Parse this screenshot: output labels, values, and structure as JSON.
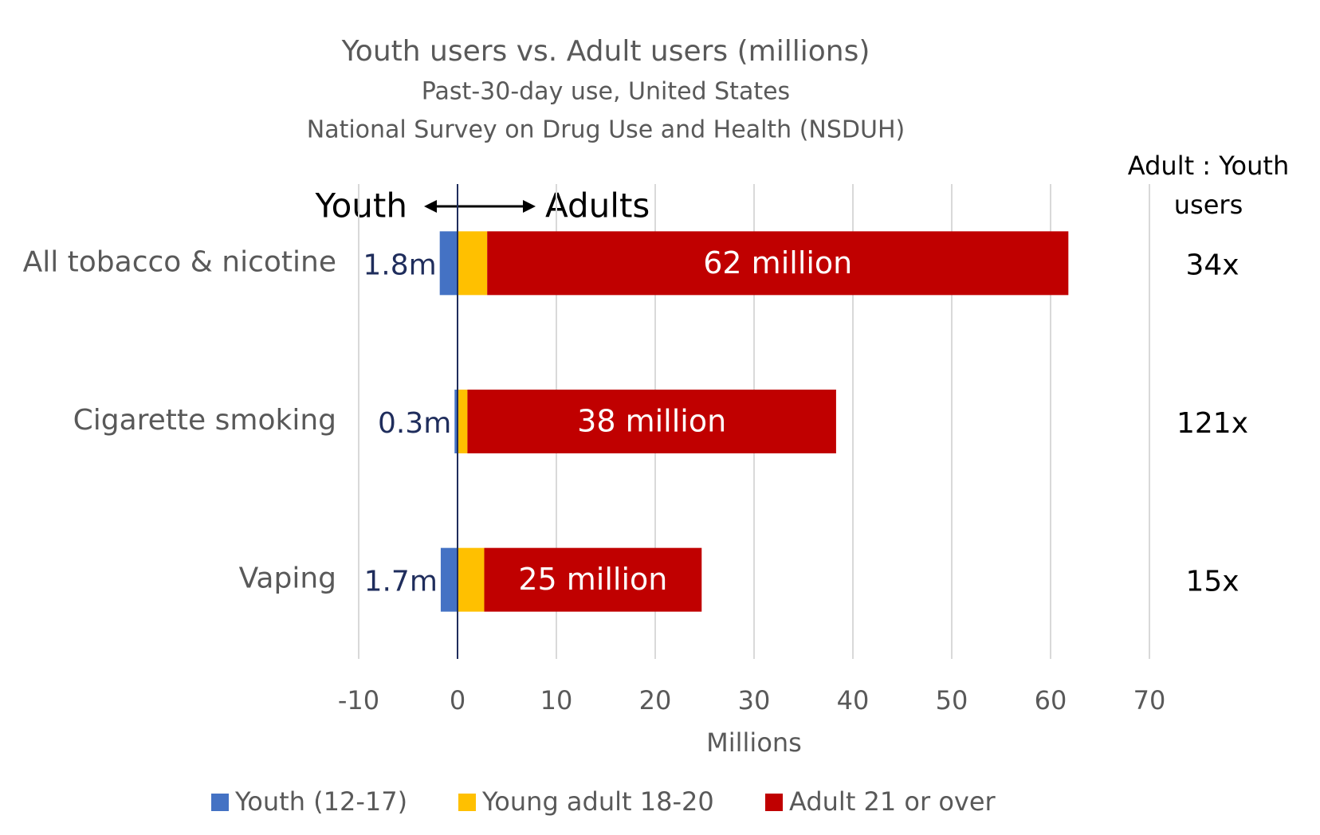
{
  "chart_data": {
    "type": "stacked_barh",
    "title": "Youth users vs. Adult users (millions)",
    "subtitle": [
      "Past-30-day use, United States",
      "National Survey on Drug Use and Health (NSDUH)"
    ],
    "x_label": "Millions",
    "categories": [
      "All tobacco & nicotine",
      "Cigarette smoking",
      "Vaping"
    ],
    "series": [
      {
        "name": "Youth (12-17)",
        "color": "#4472c4",
        "values": [
          -1.8,
          -0.3,
          -1.7
        ]
      },
      {
        "name": "Young adult 18-20",
        "color": "#ffc000",
        "values": [
          3.0,
          1.0,
          2.7
        ]
      },
      {
        "name": "Adult 21 or over",
        "color": "#c00000",
        "values": [
          58.8,
          37.3,
          22.0
        ]
      }
    ],
    "xlim": [
      -10,
      70
    ],
    "xticks": [
      -10,
      0,
      10,
      20,
      30,
      40,
      50,
      60,
      70
    ],
    "grid": true,
    "legend": "bottom",
    "annotations": {
      "youth_side": "Youth",
      "adult_side": "Adults",
      "youth_labels": [
        "1.8m",
        "0.3m",
        "1.7m"
      ],
      "adult_labels": [
        "62 million",
        "38 million",
        "25 million"
      ],
      "ratio_header": [
        "Adult : Youth",
        "users"
      ],
      "ratio_labels": [
        "34x",
        "121x",
        "15x"
      ]
    }
  }
}
